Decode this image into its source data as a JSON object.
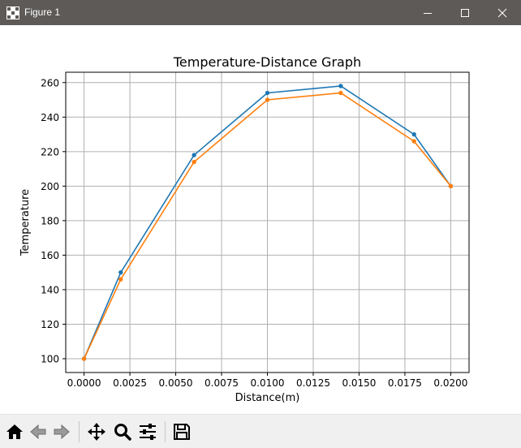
{
  "window": {
    "title": "Figure 1",
    "icons": [
      "app-icon",
      "minimize-icon",
      "maximize-icon",
      "close-icon"
    ]
  },
  "toolbar": {
    "buttons": [
      "home-icon",
      "back-arrow-icon",
      "forward-arrow-icon",
      "pan-move-icon",
      "zoom-magnifier-icon",
      "configure-subplots-icon",
      "save-floppy-icon"
    ]
  },
  "colors": {
    "titlebar": "#5d5a58",
    "series1": "#1f77b4",
    "series2": "#ff7f0e",
    "grid": "#b0b0b0",
    "toolbar": "#f0f0f0"
  },
  "chart_data": {
    "type": "line",
    "title": "Temperature-Distance Graph",
    "xlabel": "Distance(m)",
    "ylabel": "Temperature",
    "xlim": [
      -0.001,
      0.021
    ],
    "ylim": [
      92,
      266
    ],
    "xticks": [
      0.0,
      0.0025,
      0.005,
      0.0075,
      0.01,
      0.0125,
      0.015,
      0.0175,
      0.02
    ],
    "xtick_labels": [
      "0.0000",
      "0.0025",
      "0.0050",
      "0.0075",
      "0.0100",
      "0.0125",
      "0.0150",
      "0.0175",
      "0.0200"
    ],
    "yticks": [
      100,
      120,
      140,
      160,
      180,
      200,
      220,
      240,
      260
    ],
    "ytick_labels": [
      "100",
      "120",
      "140",
      "160",
      "180",
      "200",
      "220",
      "240",
      "260"
    ],
    "grid": true,
    "legend": false,
    "markers": true,
    "series": [
      {
        "x": [
          0.0,
          0.002,
          0.006,
          0.01,
          0.014,
          0.018,
          0.02
        ],
        "values": [
          100,
          150,
          218,
          254,
          258,
          230,
          200
        ],
        "color": "#1f77b4"
      },
      {
        "x": [
          0.0,
          0.002,
          0.006,
          0.01,
          0.014,
          0.018,
          0.02
        ],
        "values": [
          100,
          146,
          214,
          250,
          254,
          226,
          200
        ],
        "color": "#ff7f0e"
      }
    ]
  }
}
